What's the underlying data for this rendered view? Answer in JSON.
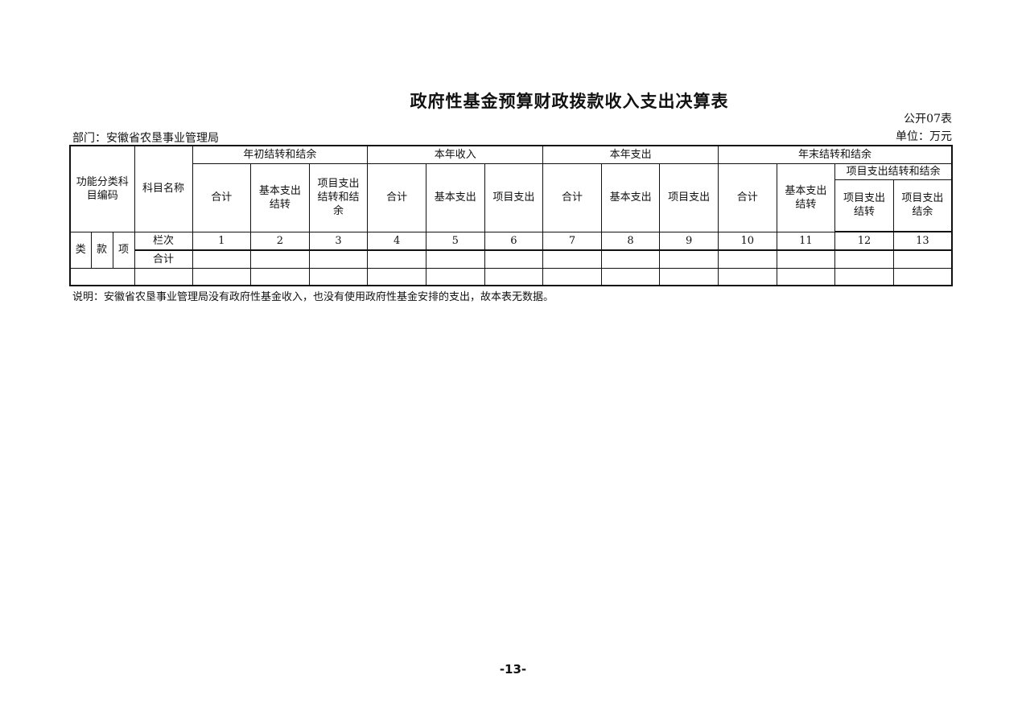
{
  "title": "政府性基金预算财政拨款收入支出决算表",
  "table_code": "公开07表",
  "unit": "单位：万元",
  "department": "部门：安徽省农垦事业管理局",
  "headers": {
    "func_code": "功能分类科目编码",
    "subject_name": "科目名称",
    "groups": [
      "年初结转和结余",
      "本年收入",
      "本年支出",
      "年末结转和结余"
    ],
    "sub": [
      "合计",
      "基本支出结转",
      "项目支出结转和结余",
      "合计",
      "基本支出",
      "项目支出",
      "合计",
      "基本支出",
      "项目支出",
      "合计",
      "基本支出结转"
    ],
    "project_group": "项目支出结转和结余",
    "project_sub": [
      "项目支出结转",
      "项目支出结余"
    ],
    "lei": "类",
    "kuan": "款",
    "xiang": "项",
    "lanci": "栏次",
    "col_numbers": [
      "1",
      "2",
      "3",
      "4",
      "5",
      "6",
      "7",
      "8",
      "9",
      "10",
      "11",
      "12",
      "13"
    ],
    "total": "合计"
  },
  "note": "说明：安徽省农垦事业管理局没有政府性基金收入，也没有使用政府性基金安排的支出，故本表无数据。",
  "page_number": "-13-"
}
